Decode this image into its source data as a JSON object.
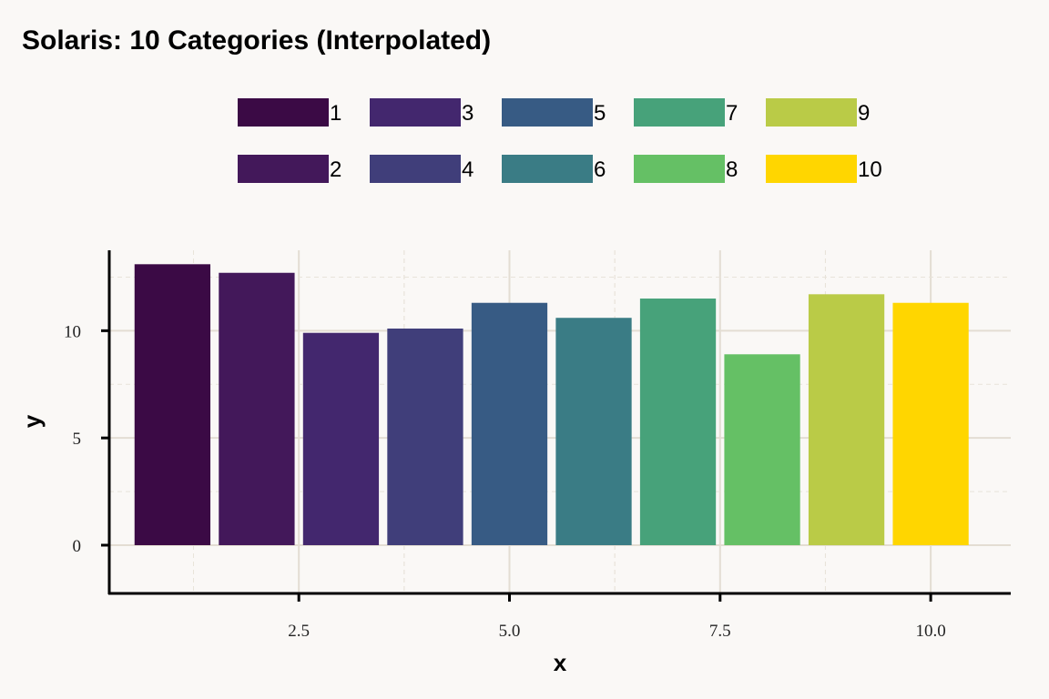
{
  "chart_data": {
    "type": "bar",
    "title": "Solaris: 10 Categories (Interpolated)",
    "xlabel": "x",
    "ylabel": "y",
    "x": [
      1,
      2,
      3,
      4,
      5,
      6,
      7,
      8,
      9,
      10
    ],
    "values": [
      13.1,
      12.7,
      9.9,
      10.1,
      11.3,
      10.6,
      11.5,
      8.9,
      11.7,
      11.3
    ],
    "legend_labels": [
      "1",
      "2",
      "3",
      "4",
      "5",
      "6",
      "7",
      "8",
      "9",
      "10"
    ],
    "colors": [
      "#3b0a45",
      "#43185a",
      "#43276e",
      "#403e7a",
      "#375b84",
      "#3a7c85",
      "#47a27a",
      "#65c065",
      "#bacb47",
      "#ffd600"
    ],
    "x_ticks": [
      "2.5",
      "5.0",
      "7.5",
      "10.0"
    ],
    "y_ticks": [
      "0",
      "5",
      "10"
    ],
    "xlim": [
      0.25,
      10.95
    ],
    "ylim": [
      -2.25,
      13.75
    ],
    "grid": true,
    "legend_position": "top",
    "legend_columns": 5
  }
}
